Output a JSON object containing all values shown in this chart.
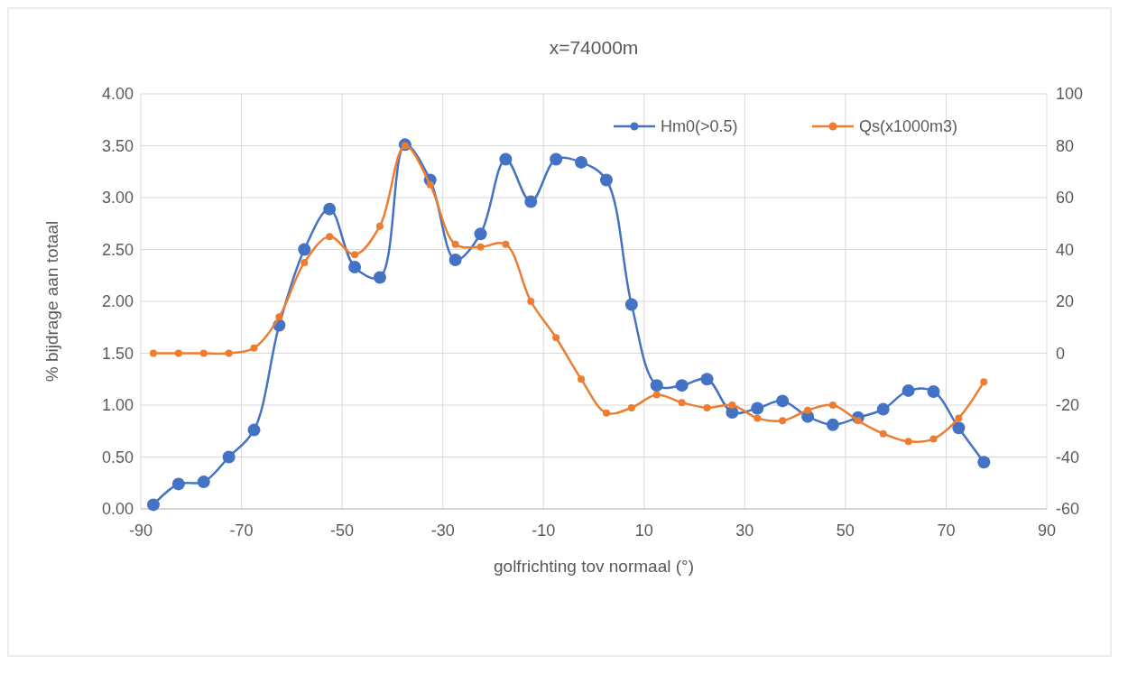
{
  "chart_data": {
    "type": "line",
    "title": "x=74000m",
    "xlabel": "golfrichting tov normaal (°)",
    "ylabel": "% bijdrage aan totaal",
    "x": [
      -87.5,
      -82.5,
      -77.5,
      -72.5,
      -67.5,
      -62.5,
      -57.5,
      -52.5,
      -47.5,
      -42.5,
      -37.5,
      -32.5,
      -27.5,
      -22.5,
      -17.5,
      -12.5,
      -7.5,
      -2.5,
      2.5,
      7.5,
      12.5,
      17.5,
      22.5,
      27.5,
      32.5,
      37.5,
      42.5,
      47.5,
      52.5,
      57.5,
      62.5,
      67.5,
      72.5,
      77.5
    ],
    "series": [
      {
        "name": "Hm0(>0.5)",
        "color": "#4472c4",
        "values": [
          0.04,
          0.24,
          0.26,
          0.5,
          0.76,
          1.77,
          2.5,
          2.89,
          2.33,
          2.23,
          3.51,
          3.17,
          2.4,
          2.65,
          3.37,
          2.96,
          3.37,
          3.34,
          3.17,
          1.97,
          1.19,
          1.19,
          1.25,
          0.93,
          0.97,
          1.04,
          0.89,
          0.81,
          0.88,
          0.96,
          1.14,
          1.13,
          0.78,
          0.45
        ]
      },
      {
        "name": "Qs(x1000m3)",
        "color": "#ed7d31",
        "axis": "y2",
        "values": [
          0,
          0,
          0,
          0,
          2,
          14,
          35,
          45,
          38,
          49,
          80,
          65,
          42,
          41,
          42,
          20,
          6,
          -10,
          -23,
          -21,
          -16,
          -19,
          -21,
          -20,
          -25,
          -26,
          -22,
          -20,
          -26,
          -31,
          -34,
          -33,
          -25,
          -11
        ]
      }
    ],
    "xlim": [
      -90,
      90
    ],
    "xticks": [
      -90,
      -70,
      -50,
      -30,
      -10,
      10,
      30,
      50,
      70,
      90
    ],
    "ylim": [
      0,
      4
    ],
    "yticks": [
      {
        "value": 0,
        "label": "0.00"
      },
      {
        "value": 0.5,
        "label": "0.50"
      },
      {
        "value": 1,
        "label": "1.00"
      },
      {
        "value": 1.5,
        "label": "1.50"
      },
      {
        "value": 2,
        "label": "2.00"
      },
      {
        "value": 2.5,
        "label": "2.50"
      },
      {
        "value": 3,
        "label": "3.00"
      },
      {
        "value": 3.5,
        "label": "3.50"
      },
      {
        "value": 4,
        "label": "4.00"
      }
    ],
    "y2lim": [
      -60,
      100
    ],
    "y2ticks": [
      -60,
      -40,
      -20,
      0,
      20,
      40,
      60,
      80,
      100
    ],
    "grid": true,
    "legend": "top right",
    "marker": "circle",
    "line_style": "solid"
  }
}
